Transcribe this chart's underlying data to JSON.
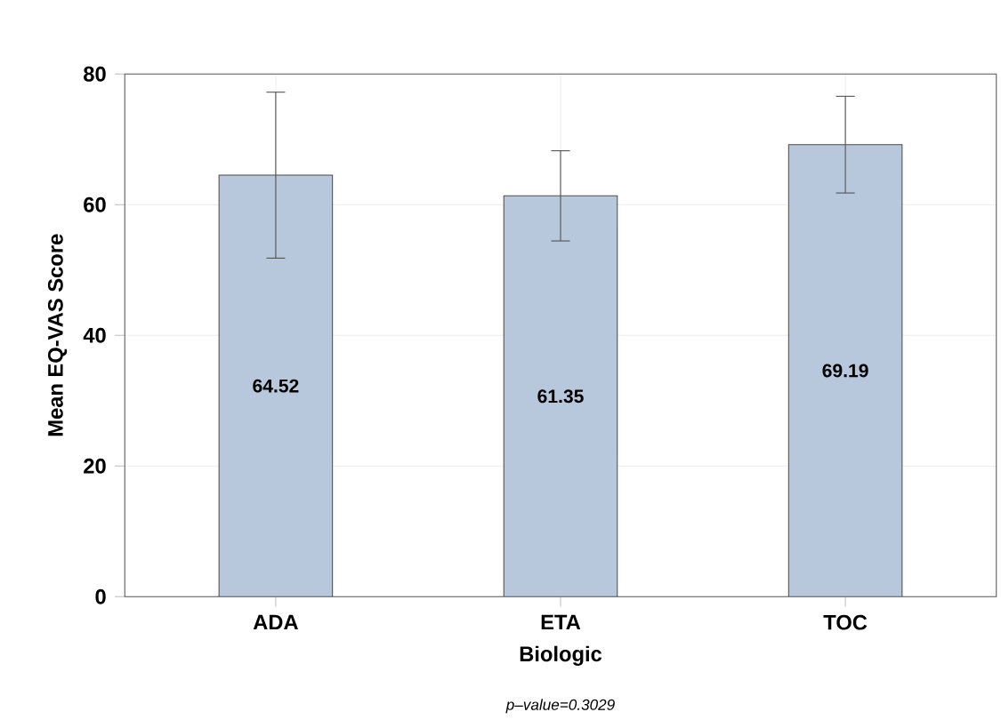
{
  "chart_data": {
    "type": "bar",
    "xlabel": "Biologic",
    "ylabel": "Mean EQ-VAS Score",
    "categories": [
      "ADA",
      "ETA",
      "TOC"
    ],
    "values": [
      64.52,
      61.35,
      69.19
    ],
    "errors": [
      12.7,
      6.9,
      7.4
    ],
    "color": "#b8c8dc",
    "ylim": [
      0,
      80
    ],
    "yticks": [
      0,
      20,
      40,
      60,
      80
    ],
    "grid": true,
    "data_labels": true,
    "annotations": [
      "p–value=0.3029"
    ]
  }
}
